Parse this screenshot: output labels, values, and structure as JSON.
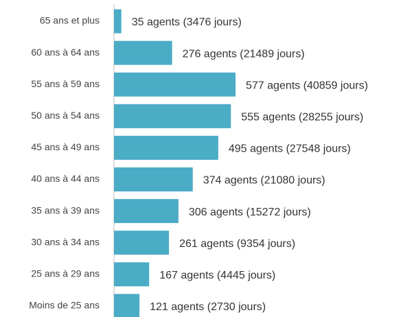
{
  "chart_data": {
    "type": "barh",
    "categories": [
      "65 ans et plus",
      "60 ans à 64 ans",
      "55 ans à 59 ans",
      "50 ans à 54 ans",
      "45 ans à 49 ans",
      "40 ans à 44 ans",
      "35 ans à 39 ans",
      "30 ans à 34 ans",
      "25 ans à 29 ans",
      "Moins de 25 ans"
    ],
    "values": [
      35,
      276,
      577,
      555,
      495,
      374,
      306,
      261,
      167,
      121
    ],
    "value_labels": [
      "35 agents (3476 jours)",
      "276 agents (21489 jours)",
      "577 agents (40859 jours)",
      "555 agents (28255 jours)",
      "495 agents (27548 jours)",
      "374 agents (21080 jours)",
      "306 agents (15272 jours)",
      "261 agents (9354 jours)",
      "167 agents (4445 jours)",
      "121 agents (2730 jours)"
    ],
    "color": "#4bacc6"
  }
}
